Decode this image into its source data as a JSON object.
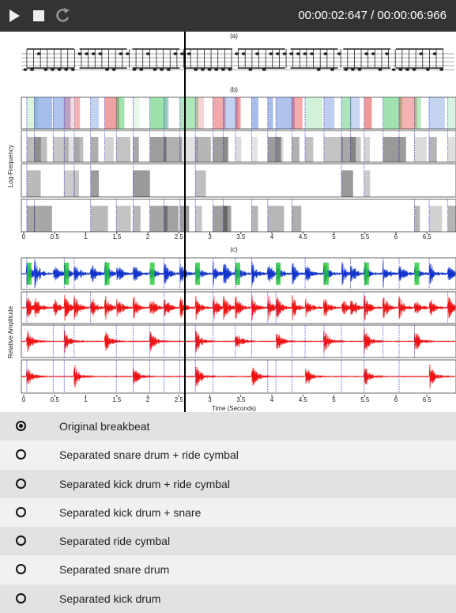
{
  "player": {
    "time": "00:00:02:647 / 00:00:06:966"
  },
  "figure": {
    "panel_labels": [
      "(a)",
      "(b)",
      "(c)"
    ],
    "y_labels": [
      "Log-Frequency",
      "Relative Amplitude"
    ],
    "ticks": [
      0,
      0.5,
      1,
      1.5,
      2,
      2.5,
      3,
      3.5,
      4,
      4.5,
      5,
      5.5,
      6,
      6.5
    ],
    "x_label": "Time (Seconds)"
  },
  "options": [
    "Original breakbeat",
    "Separated snare drum + ride cymbal",
    "Separated kick drum + ride cymbal",
    "Separated kick drum + snare",
    "Separated ride cymbal",
    "Separated snare drum",
    "Separated kick drum"
  ],
  "selected": 0
}
